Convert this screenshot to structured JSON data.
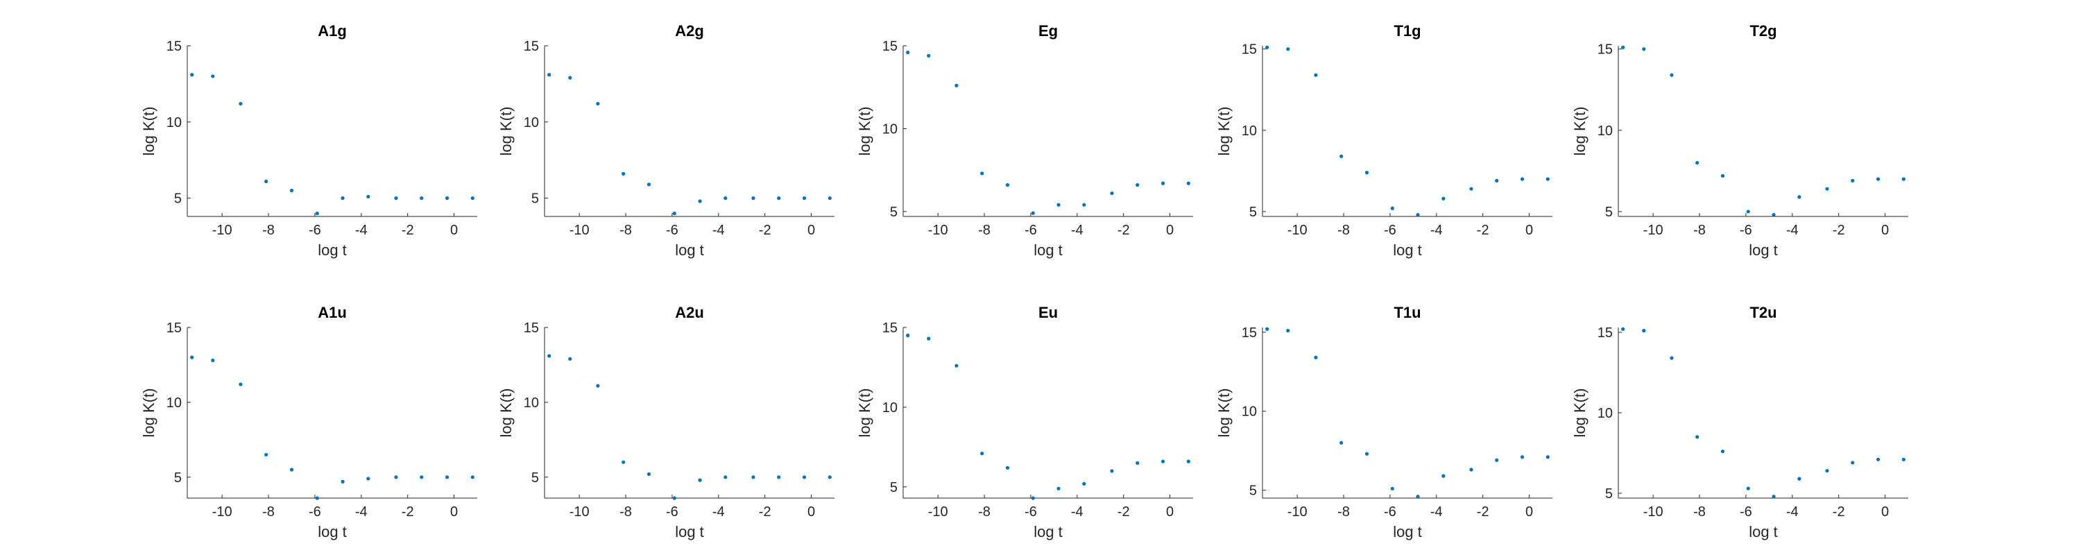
{
  "colors": {
    "marker": "#0072bd",
    "axis": "#262626",
    "background": "#ffffff"
  },
  "chart_data": [
    {
      "type": "scatter",
      "title": "A1g",
      "xlabel": "log t",
      "ylabel": "log K(t)",
      "xlim": [
        -11.5,
        1
      ],
      "ylim": [
        3.8,
        15
      ],
      "xticks": [
        -10,
        -8,
        -6,
        -4,
        -2,
        0
      ],
      "yticks": [
        5,
        10,
        15
      ],
      "grid": false,
      "x": [
        -11.3,
        -10.4,
        -9.2,
        -8.1,
        -7.0,
        -5.9,
        -4.8,
        -3.7,
        -2.5,
        -1.4,
        -0.3,
        0.8
      ],
      "y": [
        13.1,
        13.0,
        11.2,
        6.1,
        5.5,
        4.0,
        5.0,
        5.1,
        5.0,
        5.0,
        5.0,
        5.0
      ]
    },
    {
      "type": "scatter",
      "title": "A2g",
      "xlabel": "log t",
      "ylabel": "log K(t)",
      "xlim": [
        -11.5,
        1
      ],
      "ylim": [
        3.8,
        15
      ],
      "xticks": [
        -10,
        -8,
        -6,
        -4,
        -2,
        0
      ],
      "yticks": [
        5,
        10,
        15
      ],
      "grid": false,
      "x": [
        -11.3,
        -10.4,
        -9.2,
        -8.1,
        -7.0,
        -5.9,
        -4.8,
        -3.7,
        -2.5,
        -1.4,
        -0.3,
        0.8
      ],
      "y": [
        13.1,
        12.9,
        11.2,
        6.6,
        5.9,
        4.0,
        4.8,
        5.0,
        5.0,
        5.0,
        5.0,
        5.0
      ]
    },
    {
      "type": "scatter",
      "title": "Eg",
      "xlabel": "log t",
      "ylabel": "log K(t)",
      "xlim": [
        -11.5,
        1
      ],
      "ylim": [
        4.7,
        15
      ],
      "xticks": [
        -10,
        -8,
        -6,
        -4,
        -2,
        0
      ],
      "yticks": [
        5,
        10,
        15
      ],
      "grid": false,
      "x": [
        -11.3,
        -10.4,
        -9.2,
        -8.1,
        -7.0,
        -5.9,
        -4.8,
        -3.7,
        -2.5,
        -1.4,
        -0.3,
        0.8
      ],
      "y": [
        14.6,
        14.4,
        12.6,
        7.3,
        6.6,
        4.9,
        5.4,
        5.4,
        6.1,
        6.6,
        6.7,
        6.7
      ]
    },
    {
      "type": "scatter",
      "title": "T1g",
      "xlabel": "log t",
      "ylabel": "log K(t)",
      "xlim": [
        -11.5,
        1
      ],
      "ylim": [
        4.7,
        15.2
      ],
      "xticks": [
        -10,
        -8,
        -6,
        -4,
        -2,
        0
      ],
      "yticks": [
        5,
        10,
        15
      ],
      "grid": false,
      "x": [
        -11.3,
        -10.4,
        -9.2,
        -8.1,
        -7.0,
        -5.9,
        -4.8,
        -3.7,
        -2.5,
        -1.4,
        -0.3,
        0.8
      ],
      "y": [
        15.1,
        15.0,
        13.4,
        8.4,
        7.4,
        5.2,
        4.8,
        5.8,
        6.4,
        6.9,
        7.0,
        7.0
      ]
    },
    {
      "type": "scatter",
      "title": "T2g",
      "xlabel": "log t",
      "ylabel": "log K(t)",
      "xlim": [
        -11.5,
        1
      ],
      "ylim": [
        4.7,
        15.2
      ],
      "xticks": [
        -10,
        -8,
        -6,
        -4,
        -2,
        0
      ],
      "yticks": [
        5,
        10,
        15
      ],
      "grid": false,
      "x": [
        -11.3,
        -10.4,
        -9.2,
        -8.1,
        -7.0,
        -5.9,
        -4.8,
        -3.7,
        -2.5,
        -1.4,
        -0.3,
        0.8
      ],
      "y": [
        15.1,
        15.0,
        13.4,
        8.0,
        7.2,
        5.0,
        4.8,
        5.9,
        6.4,
        6.9,
        7.0,
        7.0
      ]
    },
    {
      "type": "scatter",
      "title": "A1u",
      "xlabel": "log t",
      "ylabel": "log K(t)",
      "xlim": [
        -11.5,
        1
      ],
      "ylim": [
        3.6,
        15
      ],
      "xticks": [
        -10,
        -8,
        -6,
        -4,
        -2,
        0
      ],
      "yticks": [
        5,
        10,
        15
      ],
      "grid": false,
      "x": [
        -11.3,
        -10.4,
        -9.2,
        -8.1,
        -7.0,
        -5.9,
        -4.8,
        -3.7,
        -2.5,
        -1.4,
        -0.3,
        0.8
      ],
      "y": [
        13.0,
        12.8,
        11.2,
        6.5,
        5.5,
        3.6,
        4.7,
        4.9,
        5.0,
        5.0,
        5.0,
        5.0
      ]
    },
    {
      "type": "scatter",
      "title": "A2u",
      "xlabel": "log t",
      "ylabel": "log K(t)",
      "xlim": [
        -11.5,
        1
      ],
      "ylim": [
        3.6,
        15
      ],
      "xticks": [
        -10,
        -8,
        -6,
        -4,
        -2,
        0
      ],
      "yticks": [
        5,
        10,
        15
      ],
      "grid": false,
      "x": [
        -11.3,
        -10.4,
        -9.2,
        -8.1,
        -7.0,
        -5.9,
        -4.8,
        -3.7,
        -2.5,
        -1.4,
        -0.3,
        0.8
      ],
      "y": [
        13.1,
        12.9,
        11.1,
        6.0,
        5.2,
        3.6,
        4.8,
        5.0,
        5.0,
        5.0,
        5.0,
        5.0
      ]
    },
    {
      "type": "scatter",
      "title": "Eu",
      "xlabel": "log t",
      "ylabel": "log K(t)",
      "xlim": [
        -11.5,
        1
      ],
      "ylim": [
        4.3,
        15
      ],
      "xticks": [
        -10,
        -8,
        -6,
        -4,
        -2,
        0
      ],
      "yticks": [
        5,
        10,
        15
      ],
      "grid": false,
      "x": [
        -11.3,
        -10.4,
        -9.2,
        -8.1,
        -7.0,
        -5.9,
        -4.8,
        -3.7,
        -2.5,
        -1.4,
        -0.3,
        0.8
      ],
      "y": [
        14.5,
        14.3,
        12.6,
        7.1,
        6.2,
        4.3,
        4.9,
        5.2,
        6.0,
        6.5,
        6.6,
        6.6
      ]
    },
    {
      "type": "scatter",
      "title": "T1u",
      "xlabel": "log t",
      "ylabel": "log K(t)",
      "xlim": [
        -11.5,
        1
      ],
      "ylim": [
        4.5,
        15.3
      ],
      "xticks": [
        -10,
        -8,
        -6,
        -4,
        -2,
        0
      ],
      "yticks": [
        5,
        10,
        15
      ],
      "grid": false,
      "x": [
        -11.3,
        -10.4,
        -9.2,
        -8.1,
        -7.0,
        -5.9,
        -4.8,
        -3.7,
        -2.5,
        -1.4,
        -0.3,
        0.8
      ],
      "y": [
        15.2,
        15.1,
        13.4,
        8.0,
        7.3,
        5.1,
        4.6,
        5.9,
        6.3,
        6.9,
        7.1,
        7.1
      ]
    },
    {
      "type": "scatter",
      "title": "T2u",
      "xlabel": "log t",
      "ylabel": "log K(t)",
      "xlim": [
        -11.5,
        1
      ],
      "ylim": [
        4.7,
        15.3
      ],
      "xticks": [
        -10,
        -8,
        -6,
        -4,
        -2,
        0
      ],
      "yticks": [
        5,
        10,
        15
      ],
      "grid": false,
      "x": [
        -11.3,
        -10.4,
        -9.2,
        -8.1,
        -7.0,
        -5.9,
        -4.8,
        -3.7,
        -2.5,
        -1.4,
        -0.3,
        0.8
      ],
      "y": [
        15.2,
        15.1,
        13.4,
        8.5,
        7.6,
        5.3,
        4.8,
        5.9,
        6.4,
        6.9,
        7.1,
        7.1
      ]
    }
  ]
}
